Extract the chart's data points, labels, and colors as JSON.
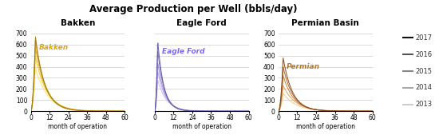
{
  "title": "Average Production per Well (bbls/day)",
  "subplots": [
    {
      "name": "Bakken",
      "label_color": "#DAA520",
      "label_text": "Bakken",
      "show_ylabel": true,
      "series": [
        {
          "year": 2013,
          "peak": 390,
          "peak_month": 3,
          "decay": 0.13,
          "color": "#FFE566"
        },
        {
          "year": 2014,
          "peak": 490,
          "peak_month": 3,
          "decay": 0.14,
          "color": "#F5C518"
        },
        {
          "year": 2015,
          "peak": 570,
          "peak_month": 3,
          "decay": 0.15,
          "color": "#DAA020"
        },
        {
          "year": 2016,
          "peak": 640,
          "peak_month": 3,
          "decay": 0.16,
          "color": "#C89010"
        },
        {
          "year": 2017,
          "peak": 670,
          "peak_month": 3,
          "decay": 0.17,
          "color": "#A07800"
        }
      ]
    },
    {
      "name": "Eagle Ford",
      "label_color": "#7B68EE",
      "label_text": "Eagle Ford",
      "show_ylabel": false,
      "series": [
        {
          "year": 2013,
          "peak": 280,
          "peak_month": 2,
          "decay": 0.18,
          "color": "#C8B8F0"
        },
        {
          "year": 2014,
          "peak": 360,
          "peak_month": 2,
          "decay": 0.2,
          "color": "#B0A0E0"
        },
        {
          "year": 2015,
          "peak": 440,
          "peak_month": 2,
          "decay": 0.22,
          "color": "#9888D0"
        },
        {
          "year": 2016,
          "peak": 550,
          "peak_month": 2,
          "decay": 0.24,
          "color": "#7B68B8"
        },
        {
          "year": 2017,
          "peak": 630,
          "peak_month": 2,
          "decay": 0.26,
          "color": "#6050A8"
        }
      ]
    },
    {
      "name": "Permian Basin",
      "label_color": "#B87830",
      "label_text": "Permian",
      "show_ylabel": true,
      "series": [
        {
          "year": 2013,
          "peak": 160,
          "peak_month": 3,
          "decay": 0.12,
          "color": "#F0C880"
        },
        {
          "year": 2014,
          "peak": 230,
          "peak_month": 3,
          "decay": 0.13,
          "color": "#E0A050"
        },
        {
          "year": 2015,
          "peak": 320,
          "peak_month": 3,
          "decay": 0.15,
          "color": "#C87830"
        },
        {
          "year": 2016,
          "peak": 400,
          "peak_month": 3,
          "decay": 0.16,
          "color": "#B06020"
        },
        {
          "year": 2017,
          "peak": 480,
          "peak_month": 3,
          "decay": 0.17,
          "color": "#804010"
        }
      ]
    }
  ],
  "legend_years": [
    2017,
    2016,
    2015,
    2014,
    2013
  ],
  "legend_colors": [
    "#111111",
    "#555555",
    "#888888",
    "#aaaaaa",
    "#cccccc"
  ],
  "ylim": [
    0,
    750
  ],
  "yticks": [
    0,
    100,
    200,
    300,
    400,
    500,
    600,
    700
  ],
  "xlim": [
    0,
    60
  ],
  "xticks": [
    0,
    12,
    24,
    36,
    48,
    60
  ],
  "xlabel": "month of operation",
  "title_fontsize": 8.5,
  "subtitle_fontsize": 7,
  "tick_fontsize": 5.5,
  "xlabel_fontsize": 5.5
}
